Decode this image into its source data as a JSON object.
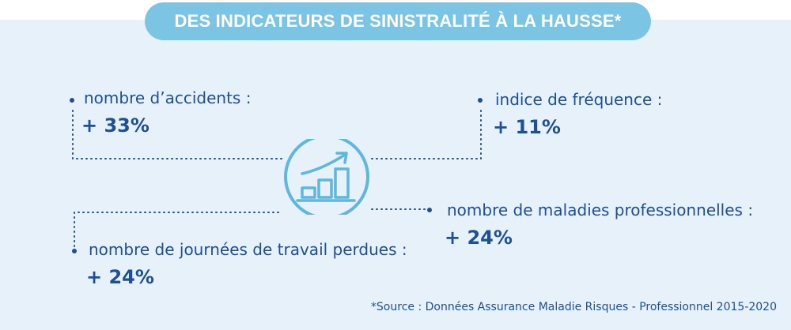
{
  "title": "DES INDICATEURS DE SINISTRALITÉ À LA HAUSSE*",
  "indicators": [
    {
      "label": "nombre d’accidents :",
      "value": "+ 33%"
    },
    {
      "label": "indice de fréquence :",
      "value": "+ 11%"
    },
    {
      "label": "nombre de maladies professionnelles :",
      "value": "+ 24%"
    },
    {
      "label": "nombre de journées de travail perdues :",
      "value": "+ 24%"
    }
  ],
  "icon": "growth-chart-icon",
  "source": "*Source : Données Assurance Maladie Risques - Professionnel 2015-2020",
  "colors": {
    "panel_bg": "#e6f1f9",
    "title_bg": "#7cc4e4",
    "text": "#1f4f95",
    "icon": "#5fb6de"
  }
}
